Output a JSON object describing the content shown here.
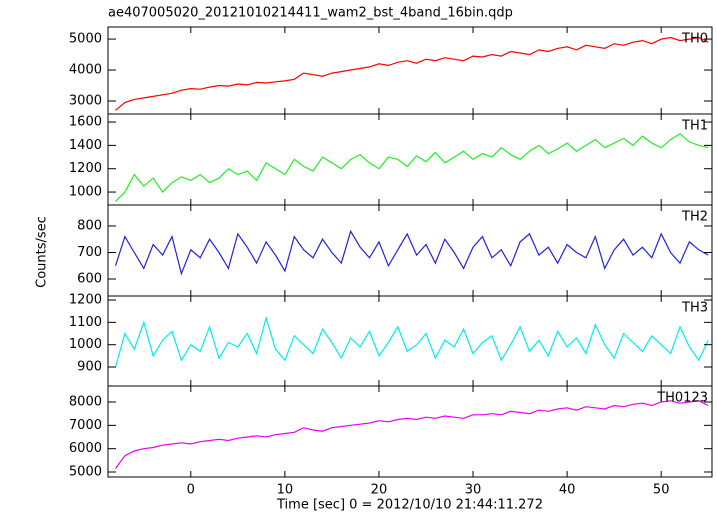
{
  "chart_data": [
    {
      "type": "line",
      "title": "ae407005020_20121010214411_wam2_bst_4band_16bin.qdp",
      "label": "TH0",
      "color": "#ff0000",
      "x": [
        -8,
        -7,
        -6,
        -5,
        -4,
        -3,
        -2,
        -1,
        0,
        1,
        2,
        3,
        4,
        5,
        6,
        7,
        8,
        9,
        10,
        11,
        12,
        13,
        14,
        15,
        16,
        17,
        18,
        19,
        20,
        21,
        22,
        23,
        24,
        25,
        26,
        27,
        28,
        29,
        30,
        31,
        32,
        33,
        34,
        35,
        36,
        37,
        38,
        39,
        40,
        41,
        42,
        43,
        44,
        45,
        46,
        47,
        48,
        49,
        50,
        51,
        52,
        53,
        54,
        55
      ],
      "values": [
        2700,
        2950,
        3050,
        3100,
        3150,
        3200,
        3250,
        3350,
        3400,
        3380,
        3450,
        3500,
        3480,
        3550,
        3520,
        3600,
        3580,
        3620,
        3650,
        3700,
        3900,
        3850,
        3800,
        3900,
        3950,
        4000,
        4050,
        4100,
        4200,
        4150,
        4250,
        4300,
        4220,
        4350,
        4300,
        4400,
        4350,
        4300,
        4450,
        4420,
        4500,
        4450,
        4600,
        4550,
        4500,
        4650,
        4600,
        4700,
        4750,
        4650,
        4800,
        4750,
        4700,
        4850,
        4800,
        4900,
        4950,
        4850,
        5000,
        5050,
        4950,
        5000,
        5050,
        4900
      ],
      "xlim": [
        -8.8,
        55.4
      ],
      "xticks": [
        0,
        10,
        20,
        30,
        40,
        50
      ],
      "ylim": [
        2580,
        5390
      ],
      "yticks": [
        3000,
        4000,
        5000
      ]
    },
    {
      "type": "line",
      "label": "TH1",
      "color": "#22ee22",
      "x": [
        -8,
        -7,
        -6,
        -5,
        -4,
        -3,
        -2,
        -1,
        0,
        1,
        2,
        3,
        4,
        5,
        6,
        7,
        8,
        9,
        10,
        11,
        12,
        13,
        14,
        15,
        16,
        17,
        18,
        19,
        20,
        21,
        22,
        23,
        24,
        25,
        26,
        27,
        28,
        29,
        30,
        31,
        32,
        33,
        34,
        35,
        36,
        37,
        38,
        39,
        40,
        41,
        42,
        43,
        44,
        45,
        46,
        47,
        48,
        49,
        50,
        51,
        52,
        53,
        54,
        55
      ],
      "values": [
        920,
        1000,
        1150,
        1050,
        1120,
        1000,
        1080,
        1130,
        1100,
        1150,
        1080,
        1120,
        1200,
        1150,
        1180,
        1100,
        1250,
        1200,
        1150,
        1280,
        1220,
        1180,
        1300,
        1250,
        1200,
        1280,
        1320,
        1250,
        1200,
        1300,
        1280,
        1220,
        1310,
        1260,
        1340,
        1250,
        1300,
        1350,
        1280,
        1330,
        1300,
        1380,
        1320,
        1280,
        1350,
        1400,
        1330,
        1370,
        1420,
        1350,
        1400,
        1450,
        1380,
        1420,
        1460,
        1400,
        1480,
        1420,
        1380,
        1450,
        1500,
        1430,
        1400,
        1380
      ],
      "xlim": [
        -8.8,
        55.4
      ],
      "xticks": [
        0,
        10,
        20,
        30,
        40,
        50
      ],
      "ylim": [
        889,
        1669
      ],
      "yticks": [
        1000,
        1200,
        1400,
        1600
      ]
    },
    {
      "type": "line",
      "label": "TH2",
      "color": "#2222dd",
      "ylabel": "Counts/sec",
      "x": [
        -8,
        -7,
        -6,
        -5,
        -4,
        -3,
        -2,
        -1,
        0,
        1,
        2,
        3,
        4,
        5,
        6,
        7,
        8,
        9,
        10,
        11,
        12,
        13,
        14,
        15,
        16,
        17,
        18,
        19,
        20,
        21,
        22,
        23,
        24,
        25,
        26,
        27,
        28,
        29,
        30,
        31,
        32,
        33,
        34,
        35,
        36,
        37,
        38,
        39,
        40,
        41,
        42,
        43,
        44,
        45,
        46,
        47,
        48,
        49,
        50,
        51,
        52,
        53,
        54,
        55
      ],
      "values": [
        650,
        760,
        700,
        640,
        730,
        690,
        760,
        620,
        710,
        680,
        750,
        700,
        640,
        770,
        720,
        660,
        740,
        690,
        630,
        760,
        710,
        680,
        750,
        700,
        660,
        780,
        720,
        680,
        740,
        650,
        710,
        770,
        690,
        730,
        660,
        750,
        700,
        640,
        720,
        760,
        680,
        710,
        650,
        740,
        770,
        690,
        720,
        660,
        730,
        700,
        680,
        760,
        640,
        710,
        750,
        690,
        720,
        680,
        770,
        700,
        660,
        740,
        710,
        690
      ],
      "xlim": [
        -8.8,
        55.4
      ],
      "xticks": [
        0,
        10,
        20,
        30,
        40,
        50
      ],
      "ylim": [
        536,
        879
      ],
      "yticks": [
        600,
        700,
        800
      ]
    },
    {
      "type": "line",
      "label": "TH3",
      "color": "#00eeee",
      "x": [
        -8,
        -7,
        -6,
        -5,
        -4,
        -3,
        -2,
        -1,
        0,
        1,
        2,
        3,
        4,
        5,
        6,
        7,
        8,
        9,
        10,
        11,
        12,
        13,
        14,
        15,
        16,
        17,
        18,
        19,
        20,
        21,
        22,
        23,
        24,
        25,
        26,
        27,
        28,
        29,
        30,
        31,
        32,
        33,
        34,
        35,
        36,
        37,
        38,
        39,
        40,
        41,
        42,
        43,
        44,
        45,
        46,
        47,
        48,
        49,
        50,
        51,
        52,
        53,
        54,
        55
      ],
      "values": [
        900,
        1050,
        980,
        1100,
        950,
        1020,
        1060,
        930,
        1000,
        970,
        1080,
        940,
        1010,
        990,
        1050,
        960,
        1120,
        980,
        930,
        1040,
        1000,
        960,
        1070,
        1010,
        940,
        1030,
        990,
        1060,
        950,
        1010,
        1080,
        970,
        1000,
        1050,
        940,
        1020,
        990,
        1070,
        960,
        1010,
        1040,
        930,
        1000,
        1080,
        970,
        1020,
        950,
        1060,
        990,
        1030,
        960,
        1090,
        1000,
        940,
        1050,
        1010,
        970,
        1040,
        1000,
        960,
        1080,
        990,
        930,
        1020
      ],
      "xlim": [
        -8.8,
        55.4
      ],
      "xticks": [
        0,
        10,
        20,
        30,
        40,
        50
      ],
      "ylim": [
        815,
        1218
      ],
      "yticks": [
        900,
        1000,
        1100,
        1200
      ]
    },
    {
      "type": "line",
      "label": "TH0123",
      "color": "#ee00ee",
      "xlabel": "Time [sec] 0 = 2012/10/10 21:44:11.272",
      "x": [
        -8,
        -7,
        -6,
        -5,
        -4,
        -3,
        -2,
        -1,
        0,
        1,
        2,
        3,
        4,
        5,
        6,
        7,
        8,
        9,
        10,
        11,
        12,
        13,
        14,
        15,
        16,
        17,
        18,
        19,
        20,
        21,
        22,
        23,
        24,
        25,
        26,
        27,
        28,
        29,
        30,
        31,
        32,
        33,
        34,
        35,
        36,
        37,
        38,
        39,
        40,
        41,
        42,
        43,
        44,
        45,
        46,
        47,
        48,
        49,
        50,
        51,
        52,
        53,
        54,
        55
      ],
      "values": [
        5150,
        5700,
        5900,
        6000,
        6050,
        6150,
        6200,
        6250,
        6200,
        6300,
        6350,
        6400,
        6350,
        6450,
        6500,
        6550,
        6500,
        6600,
        6650,
        6700,
        6900,
        6800,
        6750,
        6900,
        6950,
        7000,
        7050,
        7100,
        7200,
        7150,
        7250,
        7300,
        7250,
        7350,
        7300,
        7400,
        7350,
        7300,
        7450,
        7450,
        7500,
        7450,
        7600,
        7550,
        7500,
        7650,
        7600,
        7700,
        7750,
        7650,
        7800,
        7750,
        7700,
        7850,
        7800,
        7900,
        7950,
        7850,
        8000,
        8050,
        7950,
        8000,
        8050,
        7850
      ],
      "xlim": [
        -8.8,
        55.4
      ],
      "xticks": [
        0,
        10,
        20,
        30,
        40,
        50
      ],
      "ylim": [
        4786,
        8686
      ],
      "yticks": [
        5000,
        6000,
        7000,
        8000
      ]
    }
  ]
}
